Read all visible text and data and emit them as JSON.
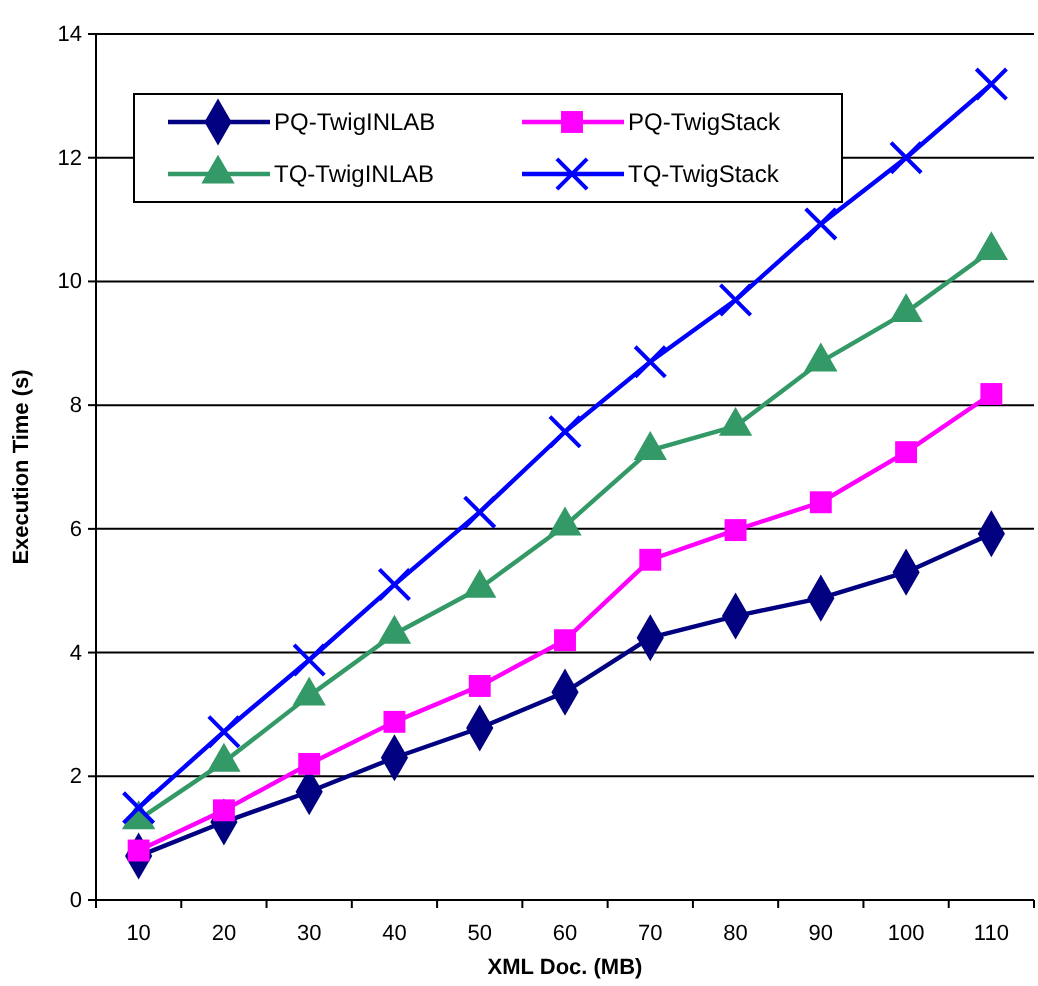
{
  "chart_data": {
    "type": "line",
    "xlabel": "XML Doc. (MB)",
    "ylabel": "Execution Time (s)",
    "categories": [
      "10",
      "20",
      "30",
      "40",
      "50",
      "60",
      "70",
      "80",
      "90",
      "100",
      "110"
    ],
    "ylim": [
      0,
      14
    ],
    "yticks": [
      0,
      2,
      4,
      6,
      8,
      10,
      12,
      14
    ],
    "grid": "y",
    "legend": "top left",
    "series": [
      {
        "name": "PQ-TwigINLAB",
        "color": "#000080",
        "marker": "diamond",
        "values": [
          0.71,
          1.26,
          1.75,
          2.3,
          2.78,
          3.36,
          4.24,
          4.59,
          4.88,
          5.3,
          5.92
        ]
      },
      {
        "name": "PQ-TwigStack",
        "color": "#ff00ff",
        "marker": "square",
        "values": [
          0.8,
          1.45,
          2.2,
          2.88,
          3.46,
          4.2,
          5.5,
          5.98,
          6.43,
          7.24,
          8.18
        ]
      },
      {
        "name": "TQ-TwigINLAB",
        "color": "#339966",
        "marker": "triangle",
        "values": [
          1.3,
          2.23,
          3.3,
          4.3,
          5.04,
          6.05,
          7.27,
          7.66,
          8.7,
          9.5,
          10.5
        ]
      },
      {
        "name": "TQ-TwigStack",
        "color": "#0000ff",
        "marker": "cross",
        "values": [
          1.49,
          2.72,
          3.88,
          5.1,
          6.27,
          7.57,
          8.7,
          9.7,
          10.93,
          12.0,
          13.19
        ]
      }
    ]
  }
}
